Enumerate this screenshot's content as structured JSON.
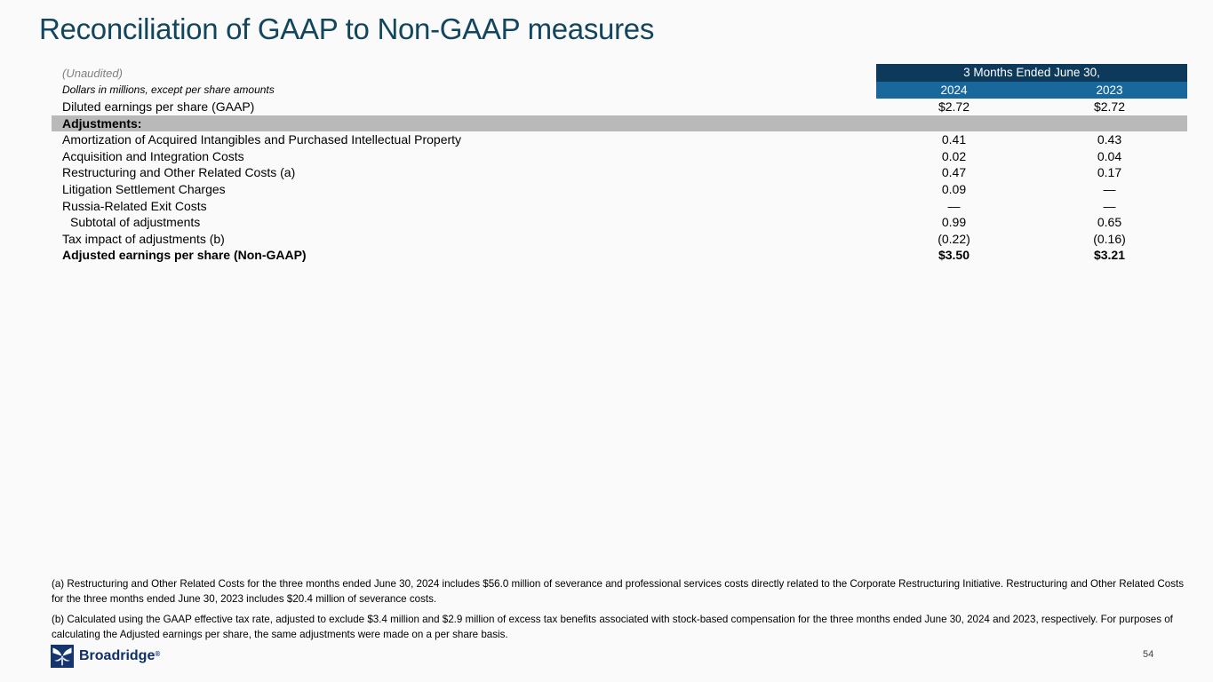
{
  "colors": {
    "slide-bg": "#fafafa",
    "title": "#12455e",
    "header-dark": "#0d3a5a",
    "header-blue": "#19689c",
    "section-gray": "#b9b9b9",
    "logo-navy": "#14356e",
    "logo-text": "#0d3068"
  },
  "slide": {
    "title": "Reconciliation of GAAP to Non-GAAP measures",
    "page_number": "54"
  },
  "logo": {
    "brand": "Broadridge",
    "registered_mark": "®",
    "icon": "broadridge-butterfly-icon"
  },
  "table": {
    "unaudited_note": "(Unaudited)",
    "units_note": "Dollars in millions, except per share amounts",
    "period_header": "3 Months Ended June 30,",
    "columns": [
      "2024",
      "2023"
    ],
    "rows": [
      {
        "label": "Diluted earnings per share (GAAP)",
        "y2024": "$2.72",
        "y2023": "$2.72",
        "style": "plain"
      },
      {
        "label": "Adjustments:",
        "y2024": "",
        "y2023": "",
        "style": "section"
      },
      {
        "label": "Amortization of Acquired Intangibles and Purchased Intellectual Property",
        "y2024": "0.41",
        "y2023": "0.43",
        "style": "plain"
      },
      {
        "label": "Acquisition and Integration Costs",
        "y2024": "0.02",
        "y2023": "0.04",
        "style": "plain"
      },
      {
        "label": "Restructuring and Other Related Costs (a)",
        "y2024": "0.47",
        "y2023": "0.17",
        "style": "plain"
      },
      {
        "label": "Litigation Settlement Charges",
        "y2024": "0.09",
        "y2023": "—",
        "style": "plain"
      },
      {
        "label": "Russia-Related Exit Costs",
        "y2024": "—",
        "y2023": "—",
        "style": "plain"
      },
      {
        "label": "Subtotal of adjustments",
        "y2024": "0.99",
        "y2023": "0.65",
        "style": "indent"
      },
      {
        "label": "Tax impact of adjustments (b)",
        "y2024": "(0.22)",
        "y2023": "(0.16)",
        "style": "plain"
      },
      {
        "label": "Adjusted earnings per share (Non-GAAP)",
        "y2024": "$3.50",
        "y2023": "$3.21",
        "style": "total"
      }
    ]
  },
  "footnotes": [
    "(a) Restructuring and Other Related Costs for the three months ended June 30, 2024 includes $56.0 million of severance and professional services costs directly related to the Corporate Restructuring Initiative. Restructuring and Other Related Costs for the three months ended June 30, 2023 includes $20.4 million of severance costs.",
    "(b) Calculated using the GAAP effective tax rate, adjusted to exclude $3.4 million and $2.9 million of excess tax benefits associated with stock-based compensation for the three months ended June 30, 2024 and 2023, respectively. For purposes of calculating the Adjusted earnings per share, the same adjustments were made on a per share basis."
  ]
}
